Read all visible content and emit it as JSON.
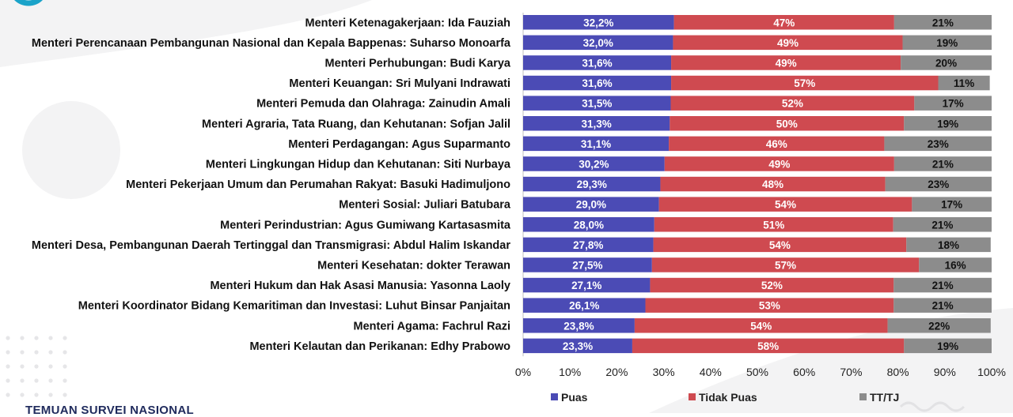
{
  "colors": {
    "puas": "#4b4bb5",
    "tidak_puas": "#cf4a50",
    "tt_tj": "#8c8c8c",
    "label_light": "#ffffff",
    "label_dark": "#111111",
    "logo_accent": "#1aa3c9"
  },
  "footer": {
    "text": "TEMUAN SURVEI NASIONAL"
  },
  "chart_data": {
    "type": "bar",
    "orientation": "horizontal",
    "stacked": true,
    "title": "",
    "xlabel": "",
    "ylabel": "",
    "xlim": [
      0,
      100
    ],
    "ticks": [
      "0%",
      "10%",
      "20%",
      "30%",
      "40%",
      "50%",
      "60%",
      "70%",
      "80%",
      "90%",
      "100%"
    ],
    "legend_position": "bottom",
    "categories": [
      "Menteri Ketenagakerjaan: Ida Fauziah",
      "Menteri Perencanaan Pembangunan Nasional dan Kepala Bappenas: Suharso Monoarfa",
      "Menteri Perhubungan: Budi Karya",
      "Menteri Keuangan: Sri Mulyani Indrawati",
      "Menteri Pemuda dan Olahraga: Zainudin Amali",
      "Menteri Agraria, Tata Ruang, dan Kehutanan: Sofjan Jalil",
      "Menteri Perdagangan: Agus Suparmanto",
      "Menteri Lingkungan Hidup dan Kehutanan: Siti Nurbaya",
      "Menteri Pekerjaan Umum dan Perumahan Rakyat: Basuki Hadimuljono",
      "Menteri Sosial: Juliari Batubara",
      "Menteri Perindustrian: Agus Gumiwang Kartasasmita",
      "Menteri Desa, Pembangunan Daerah Tertinggal dan Transmigrasi: Abdul Halim Iskandar",
      "Menteri Kesehatan: dokter Terawan",
      "Menteri Hukum dan Hak Asasi Manusia: Yasonna Laoly",
      "Menteri Koordinator Bidang Kemaritiman dan Investasi: Luhut Binsar Panjaitan",
      "Menteri Agama: Fachrul Razi",
      "Menteri Kelautan dan Perikanan: Edhy Prabowo"
    ],
    "series": [
      {
        "name": "Puas",
        "color": "#4b4bb5",
        "values": [
          32.2,
          32.0,
          31.6,
          31.6,
          31.5,
          31.3,
          31.1,
          30.2,
          29.3,
          29.0,
          28.0,
          27.8,
          27.5,
          27.1,
          26.1,
          23.8,
          23.3
        ],
        "labels": [
          "32,2%",
          "32,0%",
          "31,6%",
          "31,6%",
          "31,5%",
          "31,3%",
          "31,1%",
          "30,2%",
          "29,3%",
          "29,0%",
          "28,0%",
          "27,8%",
          "27,5%",
          "27,1%",
          "26,1%",
          "23,8%",
          "23,3%"
        ]
      },
      {
        "name": "Tidak Puas",
        "color": "#cf4a50",
        "values": [
          47,
          49,
          49,
          57,
          52,
          50,
          46,
          49,
          48,
          54,
          51,
          54,
          57,
          52,
          53,
          54,
          58
        ],
        "labels": [
          "47%",
          "49%",
          "49%",
          "57%",
          "52%",
          "50%",
          "46%",
          "49%",
          "48%",
          "54%",
          "51%",
          "54%",
          "57%",
          "52%",
          "53%",
          "54%",
          "58%"
        ]
      },
      {
        "name": "TT/TJ",
        "color": "#8c8c8c",
        "values": [
          21,
          19,
          20,
          11,
          17,
          19,
          23,
          21,
          23,
          17,
          21,
          18,
          16,
          21,
          21,
          22,
          19
        ],
        "labels": [
          "21%",
          "19%",
          "20%",
          "11%",
          "17%",
          "19%",
          "23%",
          "21%",
          "23%",
          "17%",
          "21%",
          "18%",
          "16%",
          "21%",
          "21%",
          "22%",
          "19%"
        ]
      }
    ]
  }
}
